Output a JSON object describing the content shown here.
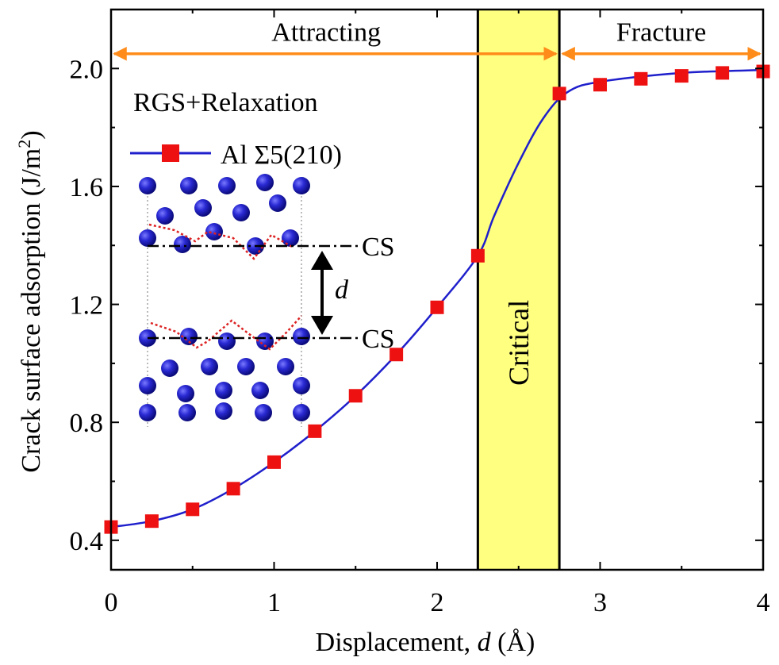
{
  "chart_data": {
    "type": "line",
    "xlabel_prefix": "Displacement, ",
    "xlabel_var": "d",
    "xlabel_unit": " (Å)",
    "ylabel_main": "Crack surface adsorption (J/m",
    "ylabel_sup": "2",
    "ylabel_close": ")",
    "xlim": [
      0,
      4
    ],
    "ylim": [
      0.3,
      2.2
    ],
    "xticks": [
      0,
      1,
      2,
      3,
      4
    ],
    "xtick_labels": [
      "0",
      "1",
      "2",
      "3",
      "4"
    ],
    "yticks": [
      0.4,
      0.8,
      1.2,
      1.6,
      2.0
    ],
    "ytick_labels": [
      "0.4",
      "0.8",
      "1.2",
      "1.6",
      "2.0"
    ],
    "series": [
      {
        "name": "Al Σ5(210)",
        "line_color": "#1f1fcc",
        "marker_color": "#ee1111",
        "x": [
          0,
          0.25,
          0.5,
          0.75,
          1.0,
          1.25,
          1.5,
          1.75,
          2.0,
          2.25,
          2.75,
          3.0,
          3.25,
          3.5,
          3.75,
          4.0
        ],
        "y": [
          0.445,
          0.465,
          0.505,
          0.575,
          0.665,
          0.77,
          0.89,
          1.03,
          1.19,
          1.365,
          1.915,
          1.945,
          1.965,
          1.975,
          1.985,
          1.99
        ]
      }
    ],
    "curve_extra_points": [
      {
        "x": 2.35,
        "y": 1.5
      },
      {
        "x": 2.5,
        "y": 1.68
      },
      {
        "x": 2.65,
        "y": 1.83
      },
      {
        "x": 2.8,
        "y": 1.92
      },
      {
        "x": 3.0,
        "y": 1.955
      },
      {
        "x": 3.5,
        "y": 1.985
      },
      {
        "x": 4.0,
        "y": 1.995
      }
    ],
    "critical_region": {
      "x_start": 2.25,
      "x_end": 2.75,
      "label": "Critical",
      "color": "#ffff80"
    },
    "regions": [
      {
        "label": "Attracting",
        "x_start": 0,
        "x_end": 2.75
      },
      {
        "label": "Fracture",
        "x_start": 2.75,
        "x_end": 4.0
      }
    ],
    "arrow_color": "#ff8c1a",
    "arrow_y": 2.05,
    "method_label": "RGS+Relaxation",
    "legend_placement": "top-left",
    "inset": {
      "cs_label_top": "CS",
      "cs_label_bottom": "CS",
      "d_label": "d",
      "atom_color": "#2a2ad4",
      "interface_color": "#dd2222"
    }
  }
}
